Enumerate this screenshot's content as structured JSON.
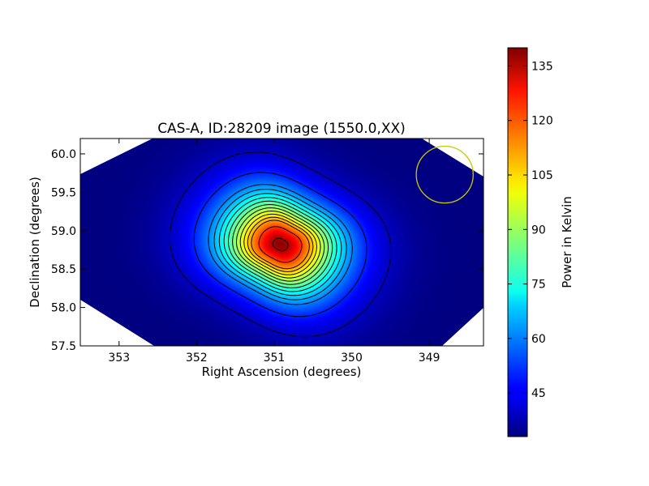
{
  "chart_data": {
    "type": "heatmap",
    "title": "CAS-A, ID:28209 image (1550.0,XX)",
    "xlabel": "Right Ascension (degrees)",
    "ylabel": "Declination (degrees)",
    "xlim": [
      353.5,
      348.3
    ],
    "ylim": [
      57.5,
      60.2
    ],
    "xticks": [
      353,
      352,
      351,
      350,
      349
    ],
    "yticks": [
      "57.5",
      "58.0",
      "58.5",
      "59.0",
      "59.5",
      "60.0"
    ],
    "peak": {
      "ra": 350.92,
      "dec": 58.82,
      "value": 139
    },
    "background_value": 33,
    "contour_levels": [
      40,
      50,
      60,
      65,
      70,
      75,
      80,
      85,
      90,
      95,
      100,
      105,
      110,
      120,
      135
    ],
    "beam_circle": {
      "ra": 348.8,
      "dec": 59.73,
      "radius_dec": 0.37
    },
    "colorbar": {
      "label": "Power in Kelvin",
      "min": 33,
      "max": 140,
      "ticks": [
        45,
        60,
        75,
        90,
        105,
        120,
        135
      ],
      "colormap": "jet"
    },
    "grid": false
  }
}
